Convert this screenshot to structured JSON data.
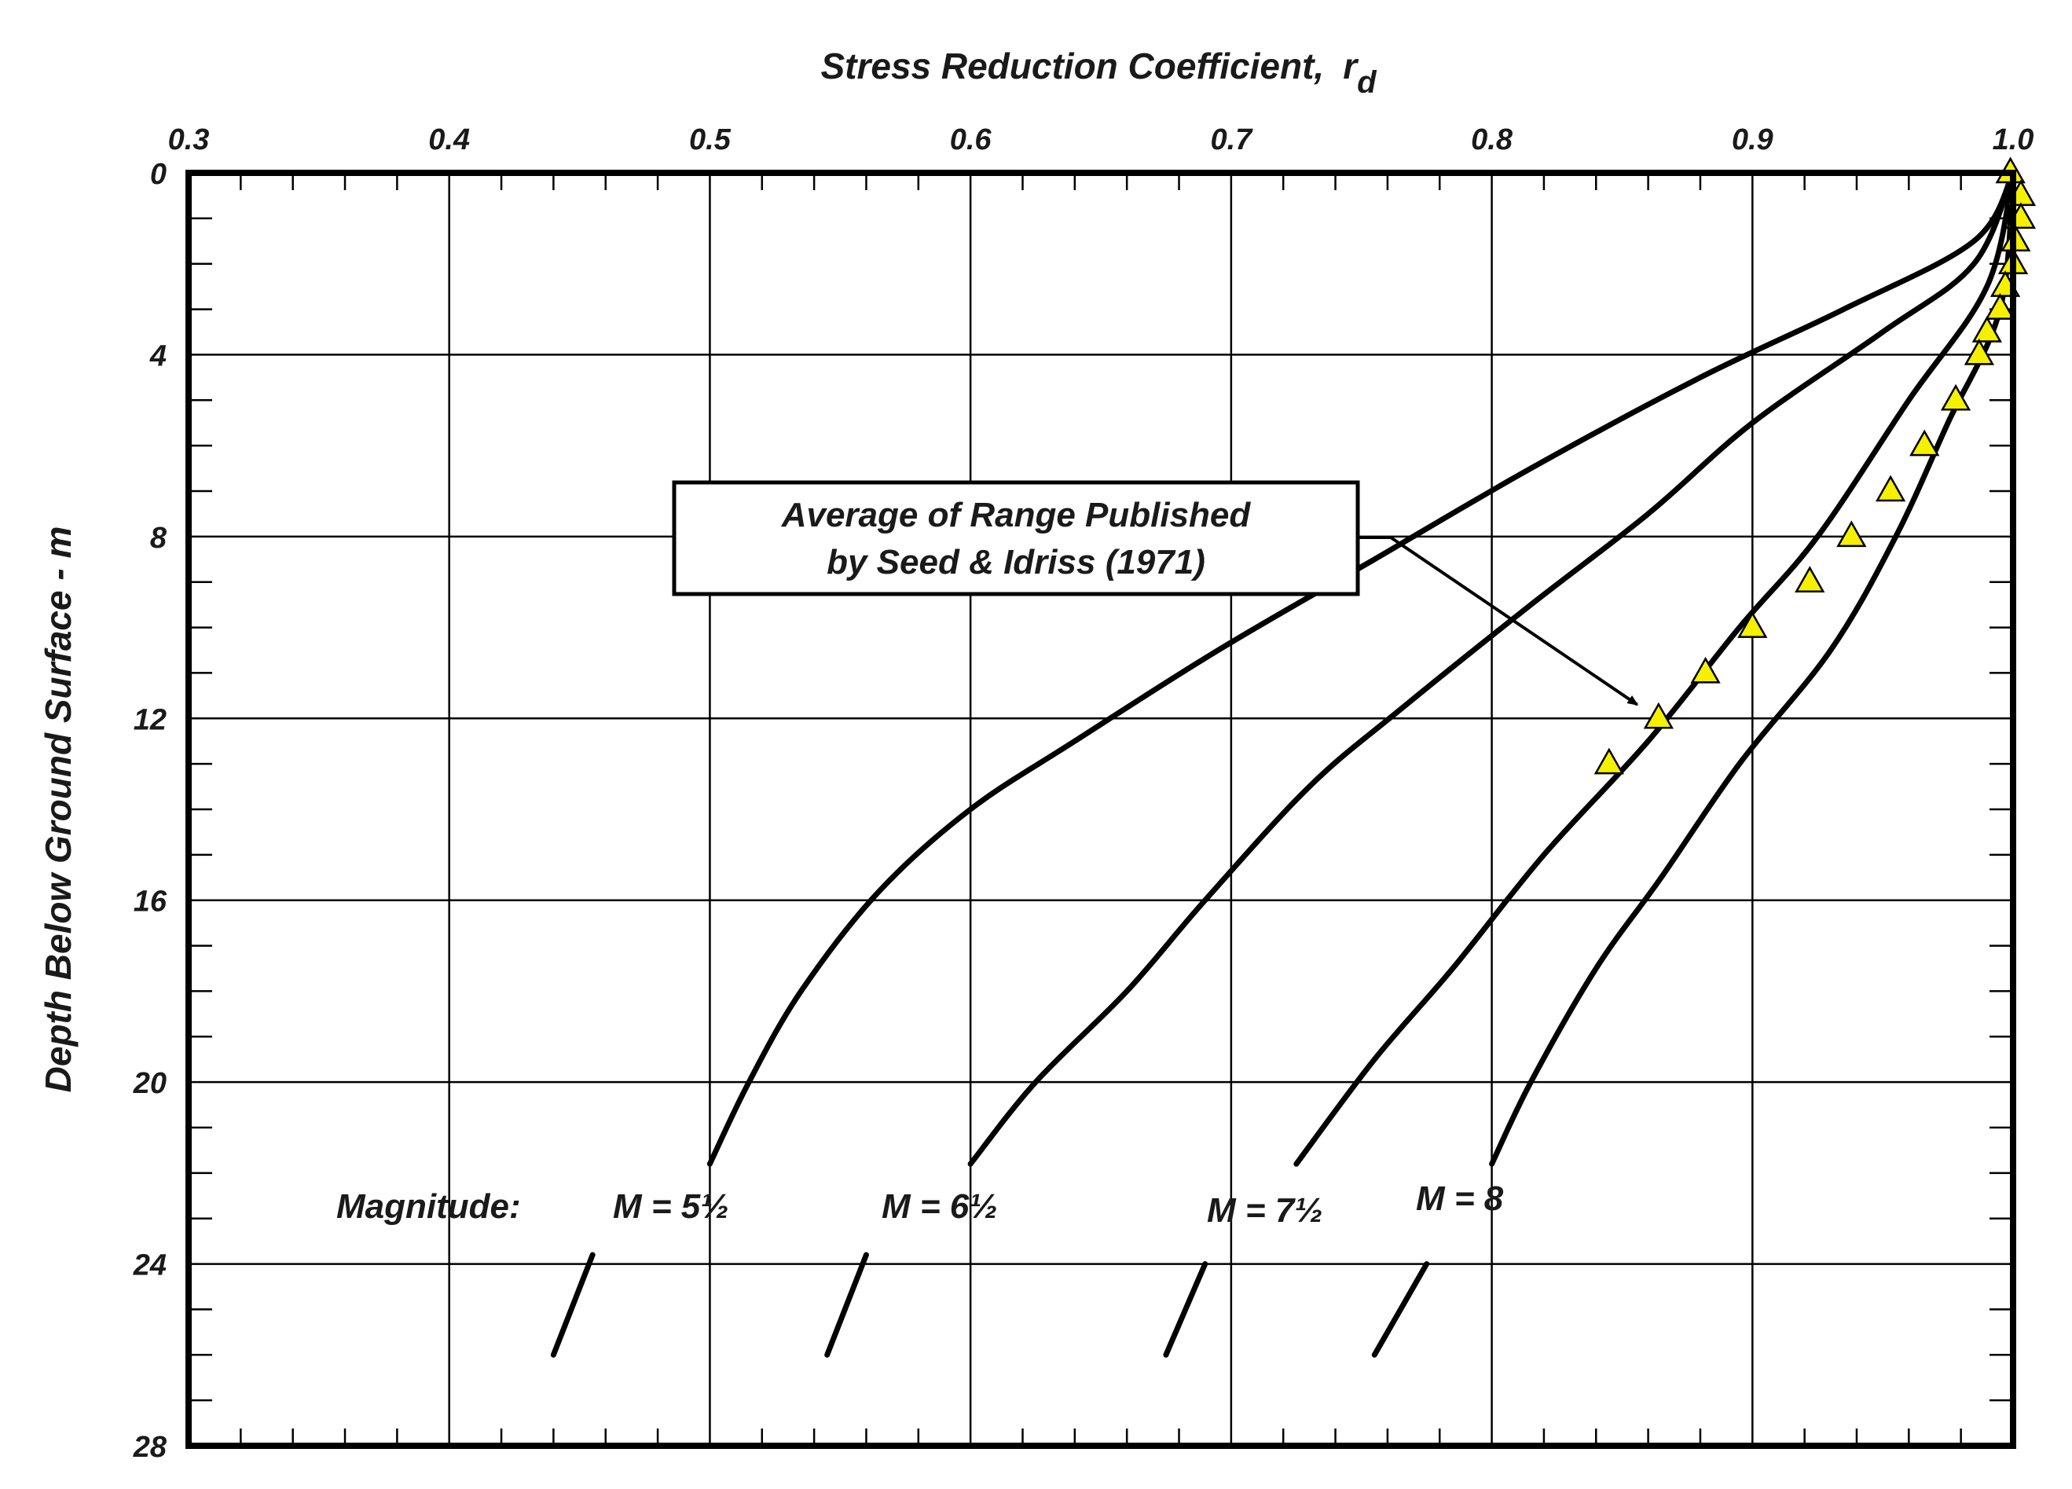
{
  "chart_data": {
    "type": "line",
    "title": "",
    "xlabel": "Stress Reduction Coefficient,",
    "xlabel_symbol": "r",
    "xlabel_subscript": "d",
    "ylabel": "Depth Below Ground Surface - m",
    "xlim": [
      0.3,
      1.0
    ],
    "ylim": [
      0,
      28
    ],
    "x_axis_position": "top",
    "y_axis_inverted": true,
    "grid": true,
    "x_ticks": [
      "0.3",
      "0.4",
      "0.5",
      "0.6",
      "0.7",
      "0.8",
      "0.9",
      "1.0"
    ],
    "y_ticks": [
      "0",
      "4",
      "8",
      "12",
      "16",
      "20",
      "24",
      "28"
    ],
    "magnitude_prefix": "Magnitude:",
    "series": [
      {
        "name": "M = 5½",
        "label": "M = 5½",
        "color": "#000000",
        "points": [
          [
            1.0,
            0
          ],
          [
            0.985,
            1.5
          ],
          [
            0.935,
            3.0
          ],
          [
            0.88,
            4.5
          ],
          [
            0.815,
            6.5
          ],
          [
            0.755,
            8.5
          ],
          [
            0.695,
            10.5
          ],
          [
            0.64,
            12.5
          ],
          [
            0.6,
            14.0
          ],
          [
            0.565,
            15.8
          ],
          [
            0.535,
            18.0
          ],
          [
            0.515,
            20.0
          ],
          [
            0.5,
            21.8
          ]
        ],
        "tail": [
          [
            0.455,
            23.8
          ],
          [
            0.44,
            26.0
          ]
        ]
      },
      {
        "name": "M = 6½",
        "label": "M = 6½",
        "color": "#000000",
        "points": [
          [
            1.0,
            0
          ],
          [
            0.985,
            2.0
          ],
          [
            0.95,
            3.5
          ],
          [
            0.9,
            5.5
          ],
          [
            0.86,
            7.5
          ],
          [
            0.815,
            9.5
          ],
          [
            0.765,
            11.8
          ],
          [
            0.73,
            13.5
          ],
          [
            0.69,
            16.0
          ],
          [
            0.66,
            18.0
          ],
          [
            0.625,
            20.0
          ],
          [
            0.6,
            21.8
          ]
        ],
        "tail": [
          [
            0.56,
            23.8
          ],
          [
            0.545,
            26.0
          ]
        ]
      },
      {
        "name": "M = 7½",
        "label": "M = 7½",
        "color": "#000000",
        "points": [
          [
            1.0,
            0
          ],
          [
            0.99,
            2.5
          ],
          [
            0.96,
            5.0
          ],
          [
            0.925,
            8.0
          ],
          [
            0.895,
            10.0
          ],
          [
            0.86,
            12.5
          ],
          [
            0.82,
            15.0
          ],
          [
            0.785,
            17.5
          ],
          [
            0.755,
            19.5
          ],
          [
            0.725,
            21.8
          ]
        ],
        "tail": [
          [
            0.69,
            24.0
          ],
          [
            0.675,
            26.0
          ]
        ]
      },
      {
        "name": "M = 8",
        "label": "M = 8",
        "color": "#000000",
        "points": [
          [
            1.0,
            0
          ],
          [
            0.995,
            3.0
          ],
          [
            0.975,
            5.5
          ],
          [
            0.955,
            8.0
          ],
          [
            0.93,
            10.5
          ],
          [
            0.895,
            13.0
          ],
          [
            0.865,
            15.5
          ],
          [
            0.84,
            17.5
          ],
          [
            0.815,
            20.0
          ],
          [
            0.8,
            21.8
          ]
        ],
        "tail": [
          [
            0.775,
            24.0
          ],
          [
            0.755,
            26.0
          ]
        ]
      }
    ],
    "markers": {
      "name": "Average of Range Published by Seed & Idriss (1971)",
      "shape": "triangle",
      "fill": "#f5f000",
      "stroke": "#000000",
      "points": [
        [
          0.999,
          0
        ],
        [
          1.003,
          0.5
        ],
        [
          1.003,
          1.0
        ],
        [
          1.001,
          1.5
        ],
        [
          1.0,
          2.0
        ],
        [
          0.997,
          2.5
        ],
        [
          0.995,
          3.0
        ],
        [
          0.99,
          3.5
        ],
        [
          0.987,
          4.0
        ],
        [
          0.978,
          5.0
        ],
        [
          0.966,
          6.0
        ],
        [
          0.953,
          7.0
        ],
        [
          0.938,
          8.0
        ],
        [
          0.922,
          9.0
        ],
        [
          0.9,
          10.0
        ],
        [
          0.882,
          11.0
        ],
        [
          0.864,
          12.0
        ],
        [
          0.845,
          13.0
        ]
      ]
    },
    "annotation": {
      "lines": [
        "Average of Range Published",
        "by Seed & Idriss (1971)"
      ],
      "arrow_target": [
        0.86,
        11.8
      ]
    }
  }
}
